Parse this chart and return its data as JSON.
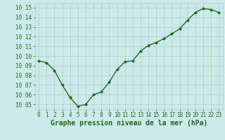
{
  "x": [
    0,
    1,
    2,
    3,
    4,
    5,
    6,
    7,
    8,
    9,
    10,
    11,
    12,
    13,
    14,
    15,
    16,
    17,
    18,
    19,
    20,
    21,
    22,
    23
  ],
  "y": [
    1009.5,
    1009.3,
    1008.5,
    1007.0,
    1005.7,
    1004.8,
    1005.0,
    1006.0,
    1006.3,
    1007.3,
    1008.6,
    1009.4,
    1009.5,
    1010.5,
    1011.1,
    1011.4,
    1011.8,
    1012.3,
    1012.8,
    1013.7,
    1014.5,
    1014.9,
    1014.8,
    1014.5
  ],
  "line_color": "#1a6b1a",
  "marker": "D",
  "marker_size": 2.0,
  "bg_color": "#cdeaea",
  "grid_color": "#a8cfc0",
  "xlabel": "Graphe pression niveau de la mer (hPa)",
  "xlabel_color": "#1a6b1a",
  "tick_color": "#1a6b1a",
  "ylim": [
    1004.5,
    1015.5
  ],
  "xlim": [
    -0.5,
    23.5
  ],
  "yticks": [
    1005,
    1006,
    1007,
    1008,
    1009,
    1010,
    1011,
    1012,
    1013,
    1014,
    1015
  ],
  "xticks": [
    0,
    1,
    2,
    3,
    4,
    5,
    6,
    7,
    8,
    9,
    10,
    11,
    12,
    13,
    14,
    15,
    16,
    17,
    18,
    19,
    20,
    21,
    22,
    23
  ],
  "tick_fontsize": 5.5,
  "xlabel_fontsize": 7.0,
  "linewidth": 1.0
}
